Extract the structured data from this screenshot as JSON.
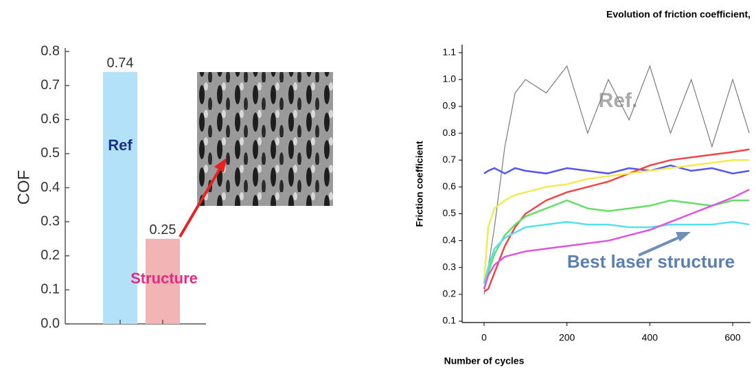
{
  "chart_data": [
    {
      "type": "bar",
      "y_label": "COF",
      "categories": [
        "Ref",
        "Structure"
      ],
      "values": [
        0.74,
        0.25
      ],
      "colors": [
        "#b3e2f8",
        "#f2b4b4"
      ],
      "category_label_colors": [
        "#1b2f8c",
        "#e32a85"
      ],
      "ylim": [
        0,
        0.8
      ],
      "yticks": [
        {
          "value": 0,
          "label": "0.0"
        },
        0.1,
        0.2,
        0.3,
        0.4,
        0.5,
        0.6,
        0.7,
        0.8
      ]
    },
    {
      "type": "line",
      "title": "Evolution of friction coefficient,",
      "x_label": "Number of cycles",
      "y_label": "Friction coefficient",
      "annotations": [
        "Ref.",
        "Best laser structure"
      ],
      "x": [
        0,
        10,
        25,
        50,
        75,
        100,
        150,
        200,
        250,
        300,
        350,
        400,
        450,
        500,
        550,
        600,
        640
      ],
      "series": [
        {
          "color": "#7a7a7a",
          "values": [
            0.2,
            0.3,
            0.45,
            0.75,
            0.95,
            1.0,
            0.95,
            1.05,
            0.8,
            1.0,
            0.85,
            1.05,
            0.8,
            1.0,
            0.75,
            1.0,
            0.8
          ]
        },
        {
          "color": "#5555ee",
          "values": [
            0.65,
            0.66,
            0.67,
            0.65,
            0.67,
            0.66,
            0.65,
            0.67,
            0.66,
            0.65,
            0.67,
            0.66,
            0.68,
            0.66,
            0.67,
            0.65,
            0.66
          ]
        },
        {
          "color": "#ee4444",
          "values": [
            0.21,
            0.22,
            0.28,
            0.38,
            0.45,
            0.5,
            0.55,
            0.58,
            0.6,
            0.62,
            0.65,
            0.68,
            0.7,
            0.71,
            0.72,
            0.73,
            0.74
          ]
        },
        {
          "color": "#f2ea55",
          "values": [
            0.25,
            0.45,
            0.52,
            0.55,
            0.57,
            0.58,
            0.6,
            0.61,
            0.63,
            0.64,
            0.65,
            0.66,
            0.67,
            0.68,
            0.69,
            0.7,
            0.7
          ]
        },
        {
          "color": "#66dd66",
          "values": [
            0.22,
            0.28,
            0.35,
            0.42,
            0.46,
            0.49,
            0.52,
            0.55,
            0.52,
            0.51,
            0.52,
            0.53,
            0.55,
            0.54,
            0.53,
            0.55,
            0.55
          ]
        },
        {
          "color": "#55e0ee",
          "values": [
            0.24,
            0.3,
            0.37,
            0.41,
            0.43,
            0.45,
            0.46,
            0.47,
            0.46,
            0.46,
            0.45,
            0.45,
            0.46,
            0.46,
            0.46,
            0.47,
            0.46
          ]
        },
        {
          "color": "#dd55dd",
          "values": [
            0.22,
            0.27,
            0.31,
            0.34,
            0.35,
            0.36,
            0.37,
            0.38,
            0.39,
            0.4,
            0.42,
            0.44,
            0.47,
            0.5,
            0.53,
            0.56,
            0.59
          ]
        }
      ],
      "xlim": [
        -53,
        643
      ],
      "xticks": [
        0,
        200,
        400,
        600
      ],
      "ylim": [
        0.095,
        1.13
      ],
      "yticks": [
        0.1,
        0.2,
        0.3,
        0.4,
        0.5,
        0.6,
        0.7,
        0.8,
        0.9,
        {
          "value": 1,
          "label": "1.0"
        },
        1.1
      ]
    }
  ]
}
